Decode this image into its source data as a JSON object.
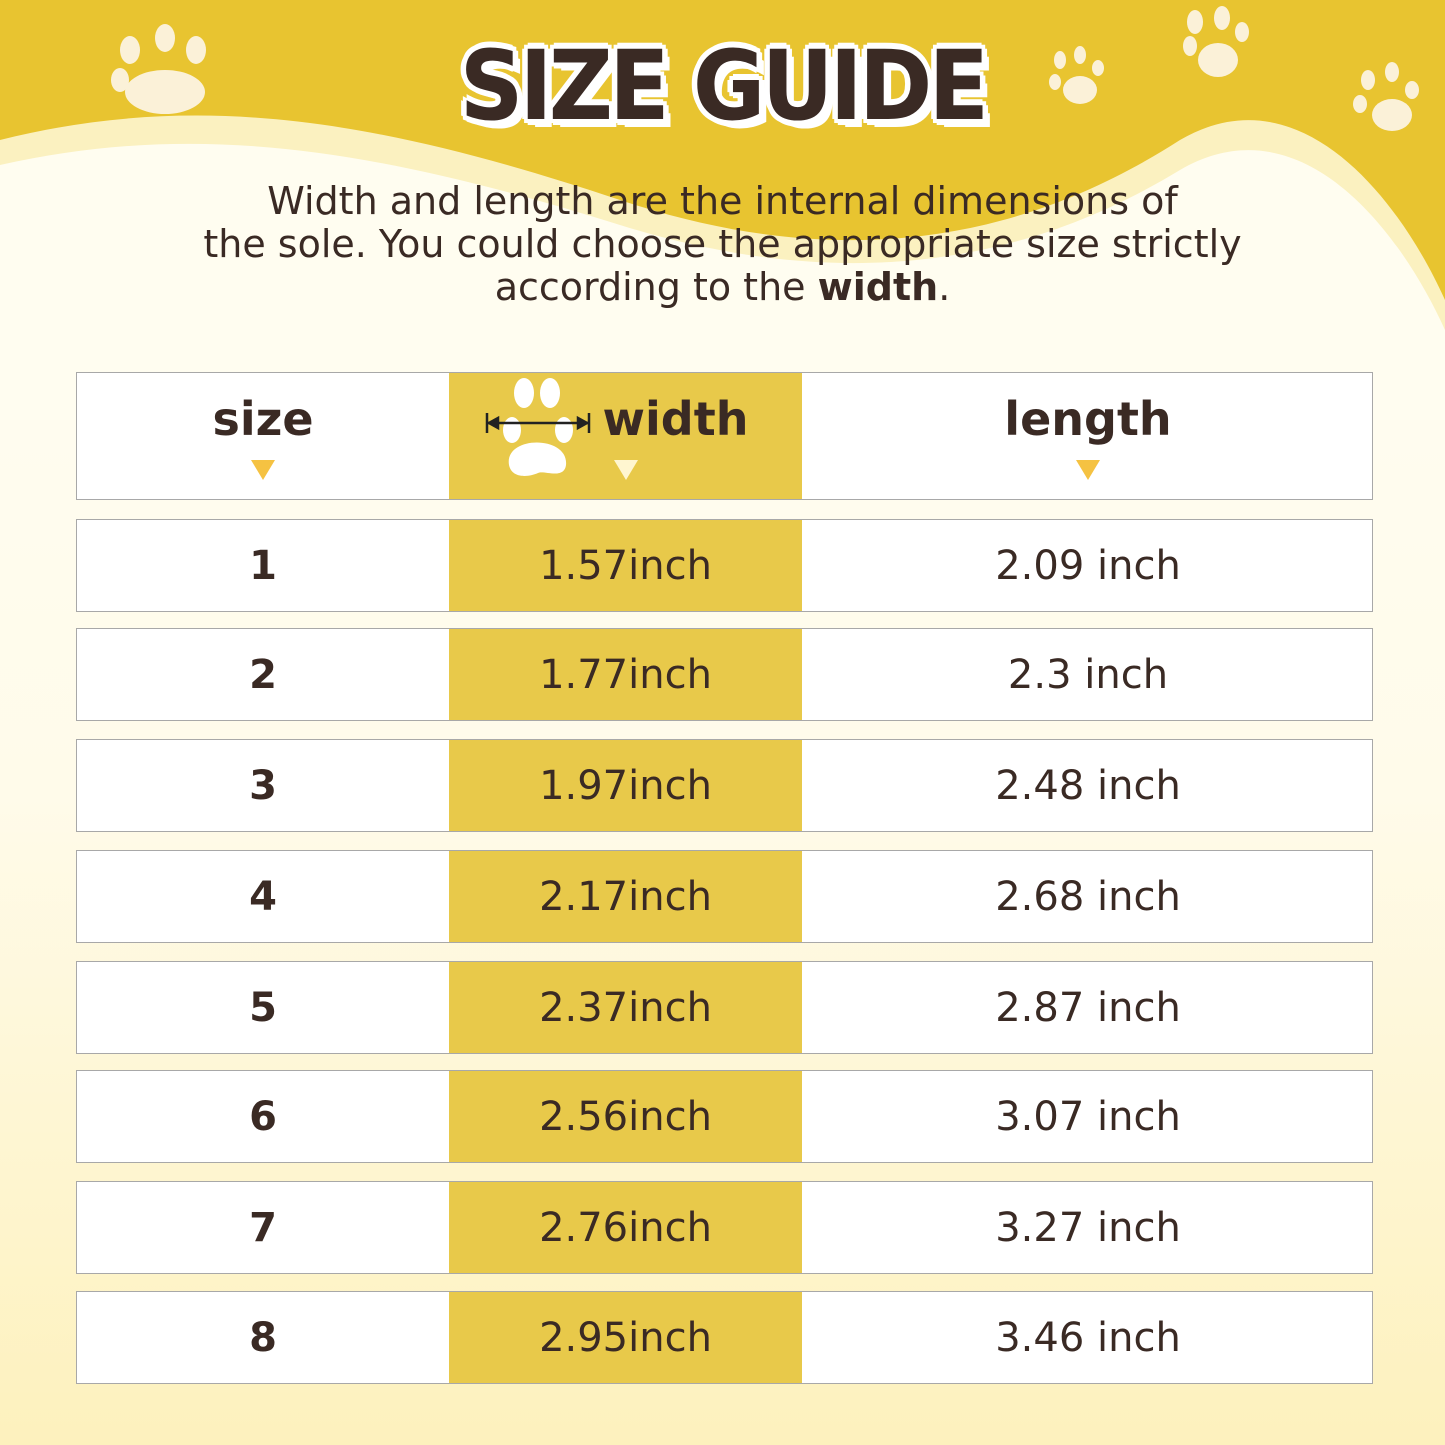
{
  "title": "SIZE GUIDE",
  "description": {
    "line1": "Width and length are the internal dimensions of",
    "line2": "the sole. You could choose the appropriate size strictly",
    "line3_prefix": "according to the ",
    "line3_bold": "width",
    "line3_suffix": "."
  },
  "colors": {
    "banner": "#e8c430",
    "highlight": "#e8c94a",
    "text": "#3a2a24",
    "arrow": "#f5c242"
  },
  "table": {
    "headers": {
      "size": "size",
      "width": "width",
      "length": "length"
    },
    "header_icon": "paw-with-width-arrow-icon",
    "rows": [
      {
        "size": "1",
        "width": "1.57inch",
        "length": "2.09 inch"
      },
      {
        "size": "2",
        "width": "1.77inch",
        "length": "2.3 inch"
      },
      {
        "size": "3",
        "width": "1.97inch",
        "length": "2.48 inch"
      },
      {
        "size": "4",
        "width": "2.17inch",
        "length": "2.68 inch"
      },
      {
        "size": "5",
        "width": "2.37inch",
        "length": "2.87 inch"
      },
      {
        "size": "6",
        "width": "2.56inch",
        "length": "3.07 inch"
      },
      {
        "size": "7",
        "width": "2.76inch",
        "length": "3.27 inch"
      },
      {
        "size": "8",
        "width": "2.95inch",
        "length": "3.46 inch"
      }
    ]
  }
}
